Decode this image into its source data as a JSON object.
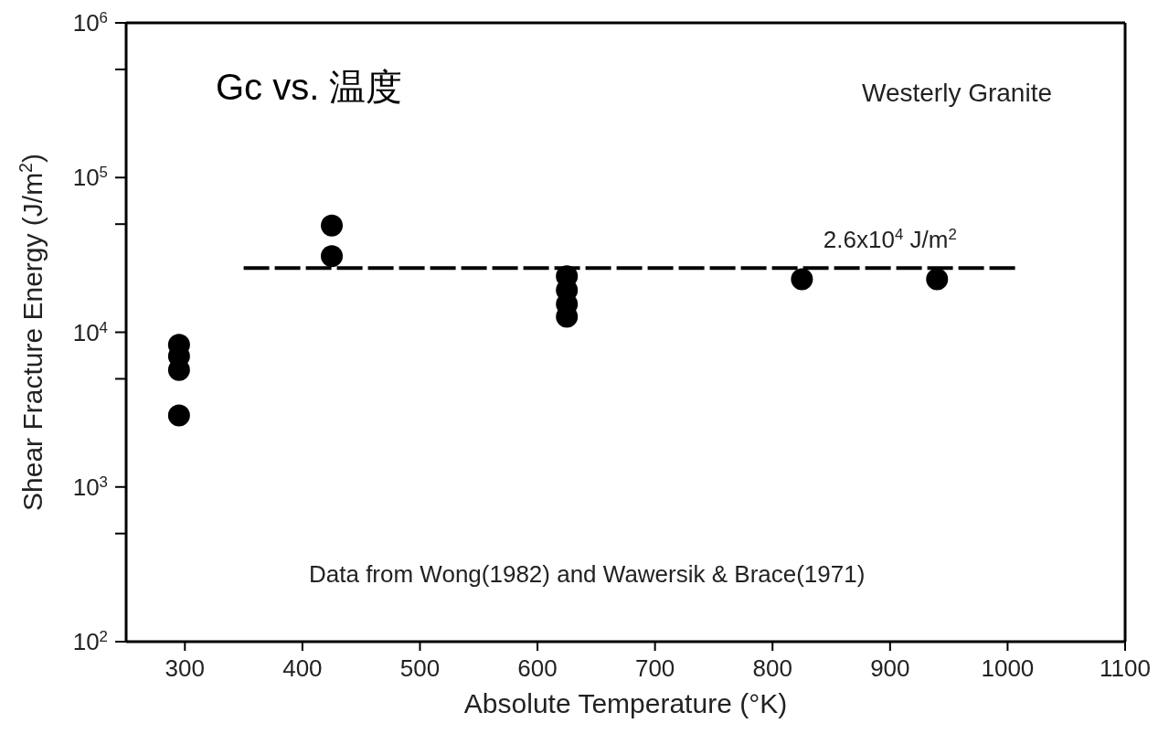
{
  "chart_data": {
    "type": "scatter",
    "title": "Gc vs. 温度",
    "xlabel": "Absolute Temperature (°K)",
    "ylabel": "Shear Fracture Energy (J/m$^{2}$)",
    "x": [
      295,
      295,
      295,
      295,
      425,
      425,
      625,
      625,
      625,
      625,
      825,
      940
    ],
    "series": [
      {
        "color": "#000000",
        "marker": "circle",
        "values": [
          2900,
          5700,
          7000,
          8300,
          31000,
          49000,
          12600,
          15200,
          18700,
          23000,
          22000,
          22000
        ]
      },
      {
        "type": "line",
        "color": "#000000",
        "line_style": "dashed",
        "marker": "none",
        "x": [
          350,
          1010
        ],
        "values": [
          26000,
          26000
        ]
      }
    ],
    "annotations": [
      "Westerly Granite",
      "Data from Wong(1982) and Wawersik & Brace(1971)",
      {
        "text": "2.6x10$^{4}$ J/m$^{2}$",
        "x": 900,
        "y": 26000
      }
    ],
    "log": "y",
    "grid": false,
    "legend": false,
    "xlim": [
      250,
      1100
    ],
    "xticks": [
      300,
      400,
      500,
      600,
      700,
      800,
      900,
      1000,
      1100
    ],
    "ylim": [
      100,
      1000000
    ],
    "yticks": [
      {
        "value": 100,
        "label": "10$^{2}$"
      },
      {
        "value": 500,
        "label": null
      },
      {
        "value": 1000,
        "label": "10$^{3}$"
      },
      {
        "value": 5000,
        "label": null
      },
      {
        "value": 10000,
        "label": "10$^{4}$"
      },
      {
        "value": 50000,
        "label": null
      },
      {
        "value": 100000,
        "label": "10$^{5}$"
      },
      {
        "value": 500000,
        "label": null
      },
      {
        "value": 1000000,
        "label": "10$^{6}$"
      }
    ]
  }
}
